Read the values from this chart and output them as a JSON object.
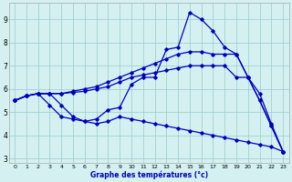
{
  "xlabel": "Graphe des températures (°c)",
  "xlim": [
    -0.5,
    23.5
  ],
  "ylim": [
    2.8,
    9.7
  ],
  "yticks": [
    3,
    4,
    5,
    6,
    7,
    8,
    9
  ],
  "xticks": [
    0,
    1,
    2,
    3,
    4,
    5,
    6,
    7,
    8,
    9,
    10,
    11,
    12,
    13,
    14,
    15,
    16,
    17,
    18,
    19,
    20,
    21,
    22,
    23
  ],
  "bg_color": "#d4f0f0",
  "line_color": "#0000bb",
  "grid_color": "#99cccc",
  "series": {
    "line_max": [
      5.5,
      5.7,
      5.8,
      5.8,
      5.3,
      4.8,
      4.6,
      4.7,
      5.1,
      5.2,
      6.2,
      6.5,
      6.5,
      7.7,
      7.8,
      9.3,
      9.0,
      8.5,
      7.8,
      7.5,
      6.5,
      5.8,
      4.5,
      3.3
    ],
    "line_mid1": [
      5.5,
      5.7,
      5.8,
      5.8,
      5.8,
      5.9,
      6.0,
      6.1,
      6.3,
      6.5,
      6.7,
      6.9,
      7.1,
      7.3,
      7.5,
      7.6,
      7.6,
      7.5,
      7.5,
      7.5,
      6.5,
      5.5,
      4.4,
      3.3
    ],
    "line_mid2": [
      5.5,
      5.7,
      5.8,
      5.8,
      5.8,
      5.85,
      5.9,
      6.0,
      6.1,
      6.3,
      6.5,
      6.6,
      6.7,
      6.8,
      6.9,
      7.0,
      7.0,
      7.0,
      7.0,
      6.5,
      6.5,
      5.5,
      4.4,
      3.3
    ],
    "line_min": [
      5.5,
      5.7,
      5.8,
      5.3,
      4.8,
      4.7,
      4.6,
      4.5,
      4.6,
      4.8,
      4.7,
      4.6,
      4.5,
      4.4,
      4.3,
      4.2,
      4.1,
      4.0,
      3.9,
      3.8,
      3.7,
      3.6,
      3.5,
      3.3
    ]
  }
}
